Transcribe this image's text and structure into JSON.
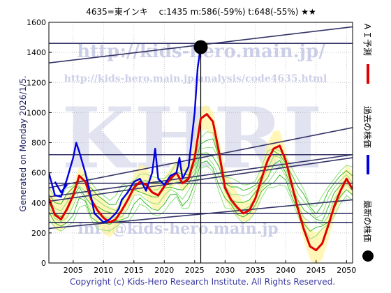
{
  "header": {
    "title": "4635=東インキ　 c:1435  m:586(-59%)  t:648(-55%)  ★★"
  },
  "side_label": "Generated on Monday 2026/1/5.",
  "footer": "Copyright (c) Kids-Hero Research Institute. All Rights Reserved.",
  "watermarks": {
    "brand": "KHRI",
    "url_main": "http://kids-hero.main.jp/",
    "url_analysis": "http://kids-hero.main.jp/analysis/code4635.html",
    "email": "info@kids-hero.main.jp"
  },
  "legend": [
    {
      "label": "ＡＩ予測",
      "color": "#e00000"
    },
    {
      "label": "過去の株価",
      "color": "#0000e0"
    },
    {
      "label": "最新の株価",
      "color": "#000000"
    }
  ],
  "chart_data": {
    "type": "line",
    "xlim": [
      2001,
      2051
    ],
    "ylim": [
      0,
      1600
    ],
    "x_ticks": [
      2005,
      2010,
      2015,
      2020,
      2025,
      2030,
      2035,
      2040,
      2045,
      2050
    ],
    "y_ticks": [
      0,
      200,
      400,
      600,
      800,
      1000,
      1200,
      1400,
      1600
    ],
    "grid": true,
    "colors": {
      "ai": "#e00000",
      "past": "#0000e0",
      "trend": "#333366",
      "band_green": "#7ddc5a",
      "band_yellow": "#fff3a0",
      "latest": "#000000"
    },
    "latest": {
      "x": 2026.0,
      "y": 1435
    },
    "horizontal_levels": [
      1460,
      720,
      530,
      330,
      270
    ],
    "trend_lines": [
      {
        "x": [
          2001,
          2051
        ],
        "y": [
          1330,
          1570
        ]
      },
      {
        "x": [
          2001,
          2051
        ],
        "y": [
          500,
          900
        ]
      },
      {
        "x": [
          2001,
          2051
        ],
        "y": [
          440,
          720
        ]
      },
      {
        "x": [
          2001,
          2051
        ],
        "y": [
          410,
          700
        ]
      },
      {
        "x": [
          2001,
          2051
        ],
        "y": [
          230,
          420
        ]
      }
    ],
    "series": [
      {
        "name": "ＡＩ予測",
        "x": [
          2001,
          2002,
          2003,
          2004,
          2005,
          2006,
          2007,
          2008,
          2009,
          2010,
          2011,
          2012,
          2013,
          2014,
          2015,
          2016,
          2017,
          2018,
          2019,
          2020,
          2021,
          2022,
          2023,
          2024,
          2025,
          2026,
          2027,
          2028,
          2029,
          2030,
          2031,
          2032,
          2033,
          2034,
          2035,
          2036,
          2037,
          2038,
          2039,
          2040,
          2041,
          2042,
          2043,
          2044,
          2045,
          2046,
          2047,
          2048,
          2049,
          2050,
          2051
        ],
        "y": [
          430,
          320,
          290,
          360,
          450,
          580,
          540,
          420,
          350,
          300,
          270,
          290,
          350,
          420,
          500,
          540,
          520,
          470,
          450,
          510,
          560,
          600,
          530,
          560,
          700,
          960,
          990,
          940,
          740,
          500,
          420,
          370,
          330,
          350,
          430,
          560,
          680,
          760,
          780,
          680,
          520,
          360,
          220,
          110,
          85,
          130,
          250,
          380,
          480,
          560,
          490
        ]
      },
      {
        "name": "過去の株価",
        "x": [
          2001,
          2002,
          2003,
          2004,
          2005,
          2005.5,
          2006,
          2007,
          2008,
          2008.5,
          2009,
          2010,
          2011,
          2012,
          2012.5,
          2013,
          2014,
          2015,
          2016,
          2017,
          2018,
          2018.5,
          2019,
          2020,
          2021,
          2022,
          2022.5,
          2023,
          2024,
          2024.5,
          2025,
          2025.5,
          2026
        ],
        "y": [
          600,
          450,
          440,
          560,
          700,
          800,
          740,
          600,
          430,
          330,
          310,
          270,
          290,
          330,
          360,
          420,
          470,
          540,
          560,
          480,
          600,
          760,
          560,
          520,
          580,
          600,
          700,
          560,
          640,
          820,
          1000,
          1300,
          1435
        ]
      },
      {
        "name": "過去の株価",
        "x": [
          2002,
          2003,
          2004
        ],
        "y": [
          540,
          470,
          520
        ]
      }
    ]
  }
}
